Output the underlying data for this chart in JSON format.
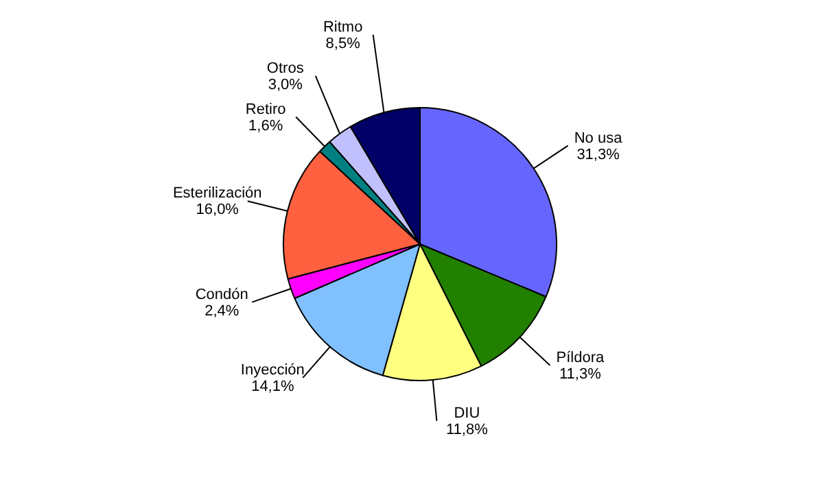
{
  "chart_data": {
    "type": "pie",
    "categories": [
      "No usa",
      "Píldora",
      "DIU",
      "Inyección",
      "Condón",
      "Esterilización",
      "Retiro",
      "Otros",
      "Ritmo"
    ],
    "values": [
      31.3,
      11.3,
      11.8,
      14.1,
      2.4,
      16.0,
      1.6,
      3.0,
      8.5
    ],
    "value_labels": [
      "31,3%",
      "11,3%",
      "11,8%",
      "14,1%",
      "2,4%",
      "16,0%",
      "1,6%",
      "3,0%",
      "8,5%"
    ],
    "colors": [
      "#6666ff",
      "#228000",
      "#ffff80",
      "#80c0ff",
      "#ff00ff",
      "#ff6040",
      "#008080",
      "#c0c0ff",
      "#000066"
    ],
    "legend": false
  }
}
